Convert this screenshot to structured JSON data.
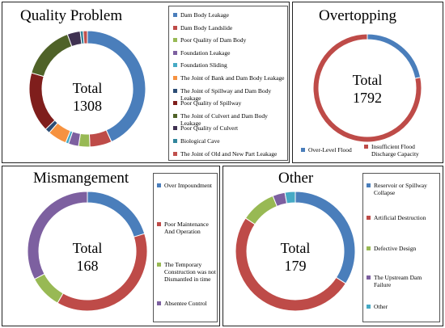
{
  "colors": {
    "blue": "#4a7ebb",
    "red": "#be4b48",
    "green": "#98b954",
    "purple": "#7d60a0",
    "cyan": "#46aac5",
    "orange": "#f69240",
    "darkred": "#7f1e1c",
    "darkgreen": "#4f6228",
    "darkpurple": "#3f3151",
    "brown": "#c0504d"
  },
  "chart_data": [
    {
      "type": "pie",
      "title": "Quality Problem",
      "center_label": "Total",
      "center_value": "1308",
      "slices": [
        {
          "name": "Dam Body Leakage",
          "value": 565,
          "color": "#4a7ebb"
        },
        {
          "name": "Dam Body Landslide",
          "value": 80,
          "color": "#be4b48"
        },
        {
          "name": "Poor Quality of Dam Body",
          "value": 41,
          "color": "#98b954"
        },
        {
          "name": "Foundation Leakage",
          "value": 37,
          "color": "#7d60a0"
        },
        {
          "name": "Foundation Sliding",
          "value": 11,
          "color": "#46aac5"
        },
        {
          "name": "The Joint of Bank and Dam Body Leakage",
          "value": 69,
          "color": "#f69240"
        },
        {
          "name": "The Joint of Spillway and Dam Body Leakage",
          "value": 18,
          "color": "#2c4d75"
        },
        {
          "name": "Poor Quality of Spillway",
          "value": 218,
          "color": "#7f1e1c"
        },
        {
          "name": "The Joint of Culvert and Dam Body Leakage",
          "value": 196,
          "color": "#4f6228"
        },
        {
          "name": "Poor Quality of Culvert",
          "value": 47,
          "color": "#3f3151"
        },
        {
          "name": "Biological Cave",
          "value": 11,
          "color": "#31859c"
        },
        {
          "name": "The Joint of Old and New Part Leakage",
          "value": 15,
          "color": "#c0504d"
        }
      ]
    },
    {
      "type": "pie",
      "title": "Overtopping",
      "center_label": "Total",
      "center_value": "1792",
      "slices": [
        {
          "name": "Over-Level Flood",
          "value": 391,
          "color": "#4a7ebb"
        },
        {
          "name": "Insufficient Flood Discharge Capacity",
          "value": 1401,
          "color": "#be4b48"
        }
      ]
    },
    {
      "type": "pie",
      "title": "Mismangement",
      "center_label": "Total",
      "center_value": "168",
      "slices": [
        {
          "name": "Over Impoundment",
          "value": 34,
          "color": "#4a7ebb"
        },
        {
          "name": "Poor Maintenance And Operation",
          "value": 64,
          "color": "#be4b48"
        },
        {
          "name": "The Temporary Construction was not Dismantled in time",
          "value": 15,
          "color": "#98b954"
        },
        {
          "name": "Absentee Control",
          "value": 55,
          "color": "#7d60a0"
        }
      ]
    },
    {
      "type": "pie",
      "title": "Other",
      "center_label": "Total",
      "center_value": "179",
      "slices": [
        {
          "name": "Reservoir or Spillway Collapse",
          "value": 61,
          "color": "#4a7ebb"
        },
        {
          "name": "Artificial Destruction",
          "value": 90,
          "color": "#be4b48"
        },
        {
          "name": "Defective Design",
          "value": 17,
          "color": "#98b954"
        },
        {
          "name": "The Upstream Dam Failure",
          "value": 6,
          "color": "#7d60a0"
        },
        {
          "name": "Other",
          "value": 5,
          "color": "#46aac5"
        }
      ]
    }
  ]
}
